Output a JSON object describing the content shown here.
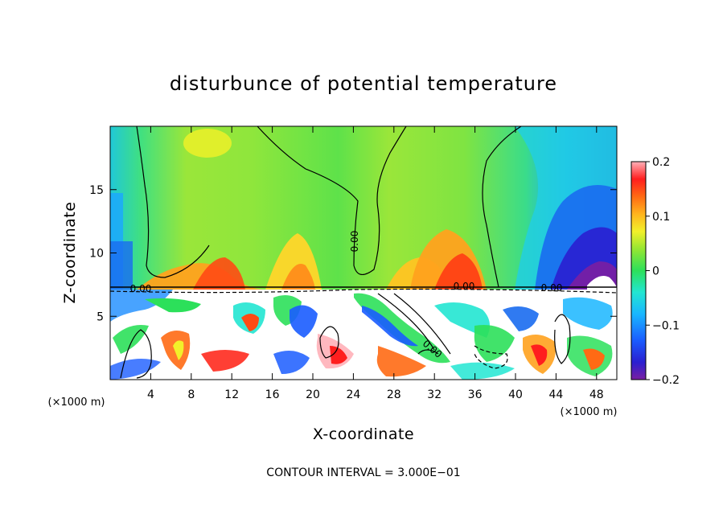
{
  "chart_data": {
    "type": "heatmap",
    "title": "disturbunce of potential temperature",
    "xlabel": "X-coordinate",
    "ylabel": "Z-coordinate",
    "x_unit": "(×1000 m)",
    "z_unit": "(×1000 m)",
    "xlim": [
      0,
      50
    ],
    "ylim": [
      0,
      20
    ],
    "x_ticks": [
      4,
      8,
      12,
      16,
      20,
      24,
      28,
      32,
      36,
      40,
      44,
      48
    ],
    "y_ticks": [
      5,
      10,
      15
    ],
    "colorbar": {
      "range": [
        -0.2,
        0.2
      ],
      "ticks": [
        0.2,
        0.1,
        0,
        -0.1,
        -0.2
      ],
      "tick_labels": [
        "0.2",
        "0.1",
        "0",
        "−0.1",
        "−0.2"
      ]
    },
    "contour_labels": [
      "0.00",
      "0.00",
      "0.00",
      "0.00",
      "0.00"
    ],
    "footnote": "CONTOUR INTERVAL = 3.000E−01"
  }
}
